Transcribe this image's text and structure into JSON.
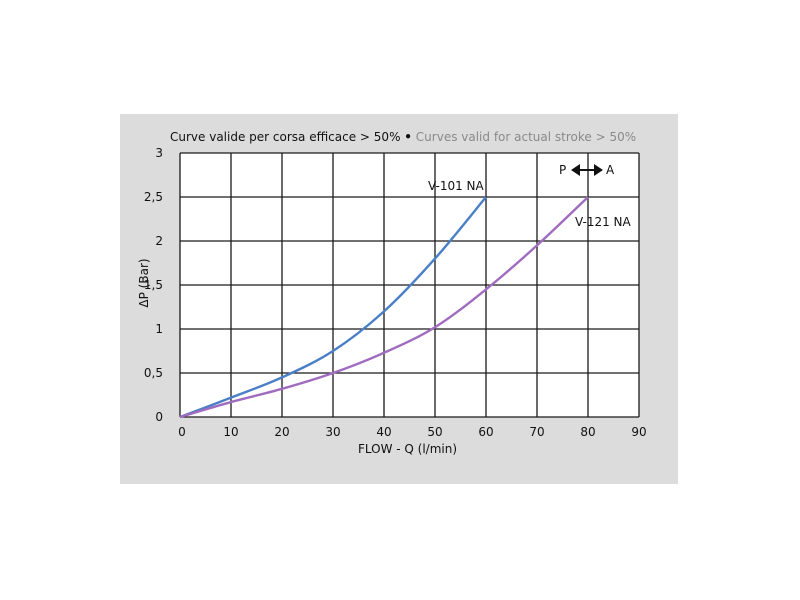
{
  "title": {
    "main": "Curve valide per corsa efficace > 50%",
    "separator": "•",
    "alt": "Curves valid for actual stroke > 50%"
  },
  "chart_data": {
    "type": "line",
    "xlabel": "FLOW - Q (l/min)",
    "ylabel": "ΔP (Bar)",
    "xlim": [
      0,
      90
    ],
    "ylim": [
      0,
      3
    ],
    "x_ticks": [
      0,
      10,
      20,
      30,
      40,
      50,
      60,
      70,
      80,
      90
    ],
    "y_ticks": [
      0,
      0.5,
      1,
      1.5,
      2,
      2.5,
      3
    ],
    "y_tick_labels": [
      "0",
      "0,5",
      "1",
      "1,5",
      "2",
      "2,5",
      "3"
    ],
    "grid": true,
    "series": [
      {
        "name": "V-101 NA",
        "color": "#4a7fc8",
        "x": [
          0,
          10,
          20,
          30,
          40,
          50,
          60
        ],
        "y": [
          0,
          0.22,
          0.45,
          0.75,
          1.2,
          1.8,
          2.5
        ]
      },
      {
        "name": "V-121 NA",
        "color": "#a06cc0",
        "x": [
          0,
          10,
          20,
          30,
          40,
          50,
          60,
          70,
          80
        ],
        "y": [
          0,
          0.17,
          0.32,
          0.5,
          0.73,
          1.02,
          1.45,
          1.95,
          2.5
        ]
      }
    ],
    "annotation": {
      "left": "P",
      "right": "A",
      "arrow": "double-arrow"
    }
  }
}
